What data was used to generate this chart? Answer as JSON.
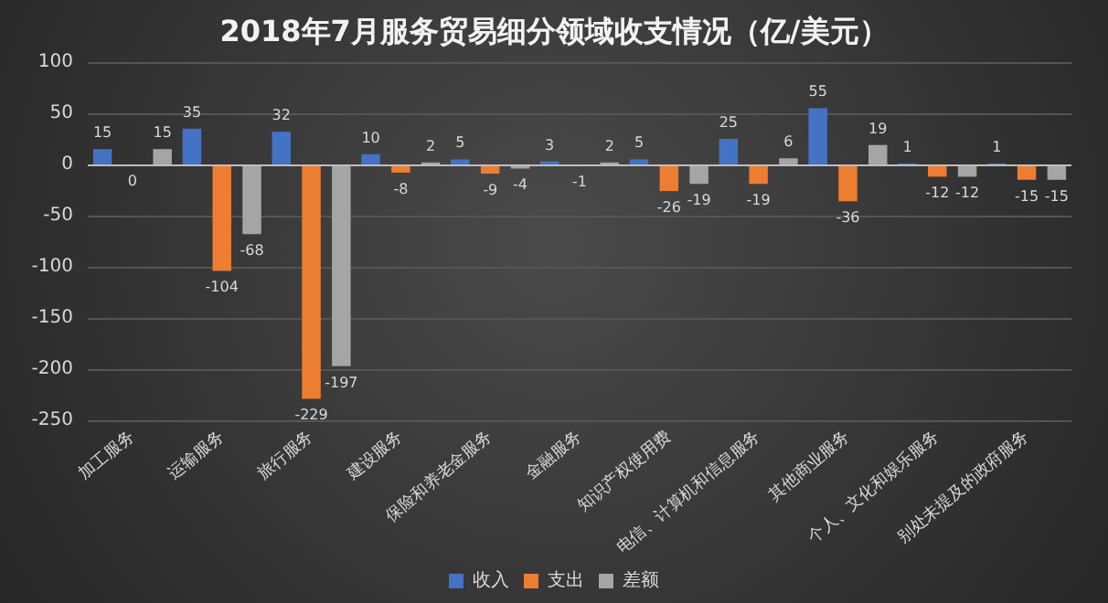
{
  "chart_data": {
    "type": "bar",
    "title": "2018年7月服务贸易细分领域收支情况（亿/美元）",
    "categories": [
      "加工服务",
      "运输服务",
      "旅行服务",
      "建设服务",
      "保险和养老金服务",
      "金融服务",
      "知识产权使用费",
      "电信、计算机和信息服务",
      "其他商业服务",
      "个人、文化和娱乐服务",
      "别处未提及的政府服务"
    ],
    "series": [
      {
        "name": "收入",
        "color": "#4472c4",
        "values": [
          15,
          35,
          32,
          10,
          5,
          3,
          5,
          25,
          55,
          1,
          1
        ]
      },
      {
        "name": "支出",
        "color": "#ed7d31",
        "values": [
          0,
          -104,
          -229,
          -8,
          -9,
          -1,
          -26,
          -19,
          -36,
          -12,
          -15
        ]
      },
      {
        "name": "差额",
        "color": "#a5a5a5",
        "values": [
          15,
          -68,
          -197,
          2,
          -4,
          2,
          -19,
          6,
          19,
          -12,
          -15
        ]
      }
    ],
    "ylim": [
      -250,
      100
    ],
    "yticks": [
      -250,
      -200,
      -150,
      -100,
      -50,
      0,
      50,
      100
    ],
    "grid": "y",
    "legend": "bottom",
    "data_labels": true
  }
}
